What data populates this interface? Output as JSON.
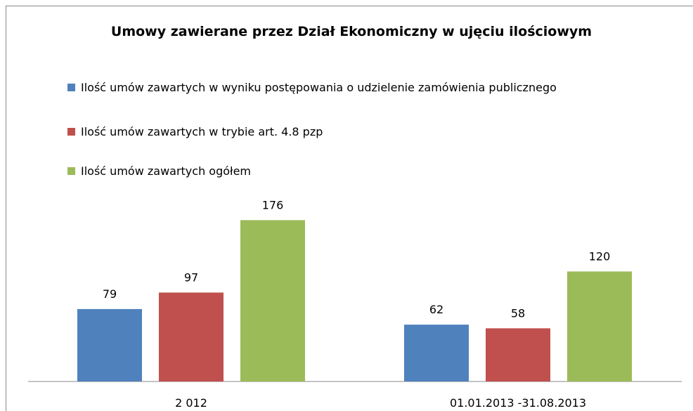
{
  "chart_data": {
    "type": "bar",
    "title": "Umowy zawierane przez Dział Ekonomiczny  w ujęciu ilościowym",
    "categories": [
      "2 012",
      "01.01.2013 -31.08.2013"
    ],
    "series": [
      {
        "name": "Ilość umów zawartych w wyniku postępowania o udzielenie zamówienia publicznego",
        "color": "#4f81bd",
        "values": [
          79,
          62
        ]
      },
      {
        "name": "Ilość umów zawartych w trybie art. 4.8 pzp",
        "color": "#c0504d",
        "values": [
          97,
          58
        ]
      },
      {
        "name": "Ilość umów zawartych ogółem",
        "color": "#9bbb59",
        "values": [
          176,
          120
        ]
      }
    ],
    "ylim": [
      0,
      200
    ],
    "legend": "top"
  }
}
